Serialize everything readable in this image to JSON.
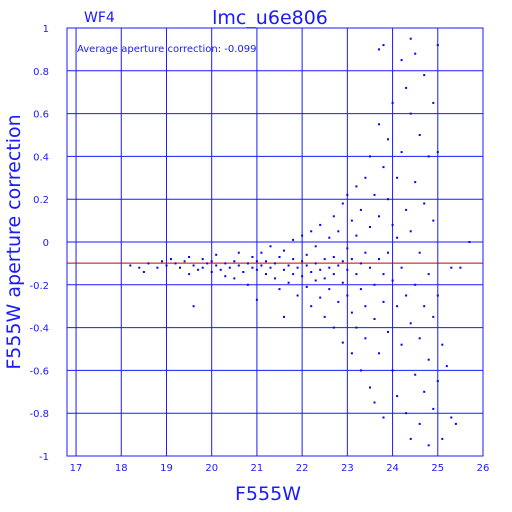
{
  "chart_data": {
    "type": "scatter",
    "panel_label": "WF4",
    "title": "lmc_u6e806",
    "annotation": "Average aperture correction: -0.099",
    "xlabel": "F555W",
    "ylabel": "F555W aperture correction",
    "xlim": [
      16.8,
      26.0
    ],
    "ylim": [
      -1,
      1
    ],
    "xticks": [
      "17",
      "18",
      "19",
      "20",
      "21",
      "22",
      "23",
      "24",
      "25",
      "26"
    ],
    "yticks": [
      "-1",
      "-0.8",
      "-0.6",
      "-0.4",
      "-0.2",
      "0",
      "0.2",
      "0.4",
      "0.6",
      "0.8",
      "1"
    ],
    "grid": true,
    "reference_line": {
      "y": -0.099,
      "color": "#cc0000"
    },
    "point_color": "#0000ff",
    "series": [
      {
        "points": [
          [
            18.2,
            -0.11
          ],
          [
            18.4,
            -0.12
          ],
          [
            18.5,
            -0.14
          ],
          [
            18.6,
            -0.1
          ],
          [
            18.8,
            -0.12
          ],
          [
            18.9,
            -0.09
          ],
          [
            19.0,
            -0.11
          ],
          [
            19.1,
            -0.08
          ],
          [
            19.2,
            -0.1
          ],
          [
            19.3,
            -0.12
          ],
          [
            19.4,
            -0.09
          ],
          [
            19.5,
            -0.07
          ],
          [
            19.5,
            -0.15
          ],
          [
            19.6,
            -0.11
          ],
          [
            19.6,
            -0.3
          ],
          [
            19.7,
            -0.13
          ],
          [
            19.8,
            -0.08
          ],
          [
            19.8,
            -0.12
          ],
          [
            19.9,
            -0.1
          ],
          [
            20.0,
            -0.14
          ],
          [
            20.0,
            -0.09
          ],
          [
            20.1,
            -0.11
          ],
          [
            20.1,
            -0.06
          ],
          [
            20.2,
            -0.13
          ],
          [
            20.3,
            -0.1
          ],
          [
            20.3,
            -0.16
          ],
          [
            20.4,
            -0.12
          ],
          [
            20.5,
            -0.09
          ],
          [
            20.5,
            -0.17
          ],
          [
            20.6,
            -0.11
          ],
          [
            20.6,
            -0.05
          ],
          [
            20.7,
            -0.14
          ],
          [
            20.8,
            -0.1
          ],
          [
            20.8,
            -0.2
          ],
          [
            20.9,
            -0.12
          ],
          [
            20.9,
            -0.07
          ],
          [
            21.0,
            -0.13
          ],
          [
            21.0,
            -0.09
          ],
          [
            21.0,
            -0.27
          ],
          [
            21.1,
            -0.11
          ],
          [
            21.1,
            -0.05
          ],
          [
            21.2,
            -0.15
          ],
          [
            21.2,
            -0.09
          ],
          [
            21.3,
            -0.12
          ],
          [
            21.3,
            -0.02
          ],
          [
            21.4,
            -0.17
          ],
          [
            21.4,
            -0.1
          ],
          [
            21.5,
            -0.07
          ],
          [
            21.5,
            -0.22
          ],
          [
            21.6,
            -0.13
          ],
          [
            21.6,
            -0.04
          ],
          [
            21.6,
            -0.35
          ],
          [
            21.7,
            -0.11
          ],
          [
            21.7,
            -0.19
          ],
          [
            21.8,
            -0.08
          ],
          [
            21.8,
            -0.15
          ],
          [
            21.8,
            0.01
          ],
          [
            21.9,
            -0.12
          ],
          [
            21.9,
            -0.25
          ],
          [
            22.0,
            -0.09
          ],
          [
            22.0,
            -0.16
          ],
          [
            22.0,
            0.03
          ],
          [
            22.1,
            -0.11
          ],
          [
            22.1,
            -0.21
          ],
          [
            22.1,
            -0.06
          ],
          [
            22.2,
            -0.14
          ],
          [
            22.2,
            0.05
          ],
          [
            22.2,
            -0.3
          ],
          [
            22.3,
            -0.1
          ],
          [
            22.3,
            -0.18
          ],
          [
            22.3,
            -0.02
          ],
          [
            22.4,
            -0.13
          ],
          [
            22.4,
            -0.26
          ],
          [
            22.4,
            0.08
          ],
          [
            22.5,
            -0.08
          ],
          [
            22.5,
            -0.17
          ],
          [
            22.5,
            -0.35
          ],
          [
            22.6,
            -0.12
          ],
          [
            22.6,
            0.02
          ],
          [
            22.6,
            -0.22
          ],
          [
            22.7,
            -0.07
          ],
          [
            22.7,
            -0.15
          ],
          [
            22.7,
            0.12
          ],
          [
            22.7,
            -0.4
          ],
          [
            22.8,
            -0.11
          ],
          [
            22.8,
            -0.28
          ],
          [
            22.8,
            0.05
          ],
          [
            22.9,
            -0.09
          ],
          [
            22.9,
            -0.19
          ],
          [
            22.9,
            0.18
          ],
          [
            22.9,
            -0.47
          ],
          [
            23.0,
            -0.13
          ],
          [
            23.0,
            -0.03
          ],
          [
            23.0,
            -0.25
          ],
          [
            23.0,
            0.22
          ],
          [
            23.1,
            -0.08
          ],
          [
            23.1,
            -0.33
          ],
          [
            23.1,
            0.1
          ],
          [
            23.1,
            -0.52
          ],
          [
            23.2,
            -0.15
          ],
          [
            23.2,
            0.03
          ],
          [
            23.2,
            -0.4
          ],
          [
            23.2,
            0.26
          ],
          [
            23.3,
            -0.1
          ],
          [
            23.3,
            -0.22
          ],
          [
            23.3,
            0.15
          ],
          [
            23.3,
            -0.6
          ],
          [
            23.4,
            -0.05
          ],
          [
            23.4,
            -0.3
          ],
          [
            23.4,
            0.3
          ],
          [
            23.4,
            -0.45
          ],
          [
            23.5,
            -0.12
          ],
          [
            23.5,
            0.07
          ],
          [
            23.5,
            -0.68
          ],
          [
            23.5,
            0.4
          ],
          [
            23.6,
            -0.2
          ],
          [
            23.6,
            -0.36
          ],
          [
            23.6,
            0.22
          ],
          [
            23.6,
            -0.75
          ],
          [
            23.7,
            -0.08
          ],
          [
            23.7,
            0.12
          ],
          [
            23.7,
            -0.52
          ],
          [
            23.7,
            0.55
          ],
          [
            23.7,
            0.9
          ],
          [
            23.8,
            -0.15
          ],
          [
            23.8,
            -0.28
          ],
          [
            23.8,
            0.35
          ],
          [
            23.8,
            -0.82
          ],
          [
            23.8,
            0.92
          ],
          [
            23.9,
            -0.05
          ],
          [
            23.9,
            0.2
          ],
          [
            23.9,
            -0.42
          ],
          [
            23.9,
            0.48
          ],
          [
            24.0,
            -0.18
          ],
          [
            24.0,
            -0.6
          ],
          [
            24.0,
            0.08
          ],
          [
            24.0,
            0.65
          ],
          [
            24.1,
            -0.3
          ],
          [
            24.1,
            0.3
          ],
          [
            24.1,
            -0.72
          ],
          [
            24.1,
            0.02
          ],
          [
            24.2,
            -0.12
          ],
          [
            24.2,
            -0.48
          ],
          [
            24.2,
            0.42
          ],
          [
            24.2,
            0.85
          ],
          [
            24.3,
            -0.25
          ],
          [
            24.3,
            -0.8
          ],
          [
            24.3,
            0.15
          ],
          [
            24.3,
            0.72
          ],
          [
            24.4,
            -0.38
          ],
          [
            24.4,
            0.05
          ],
          [
            24.4,
            0.6
          ],
          [
            24.4,
            -0.92
          ],
          [
            24.4,
            0.95
          ],
          [
            24.5,
            -0.2
          ],
          [
            24.5,
            -0.62
          ],
          [
            24.5,
            0.28
          ],
          [
            24.5,
            0.88
          ],
          [
            24.6,
            -0.45
          ],
          [
            24.6,
            -0.05
          ],
          [
            24.6,
            0.5
          ],
          [
            24.6,
            -0.85
          ],
          [
            24.7,
            -0.3
          ],
          [
            24.7,
            0.18
          ],
          [
            24.7,
            0.78
          ],
          [
            24.7,
            -0.7
          ],
          [
            24.8,
            -0.15
          ],
          [
            24.8,
            -0.55
          ],
          [
            24.8,
            0.4
          ],
          [
            24.8,
            -0.95
          ],
          [
            24.9,
            -0.35
          ],
          [
            24.9,
            0.1
          ],
          [
            24.9,
            -0.78
          ],
          [
            24.9,
            0.65
          ],
          [
            25.0,
            -0.25
          ],
          [
            25.0,
            0.42
          ],
          [
            25.0,
            -0.65
          ],
          [
            25.0,
            0.92
          ],
          [
            25.1,
            -0.48
          ],
          [
            25.1,
            -0.92
          ],
          [
            25.2,
            -0.58
          ],
          [
            25.3,
            -0.12
          ],
          [
            25.3,
            -0.82
          ],
          [
            25.4,
            -0.85
          ],
          [
            25.5,
            -0.12
          ],
          [
            25.7,
            0.0
          ]
        ]
      }
    ]
  }
}
